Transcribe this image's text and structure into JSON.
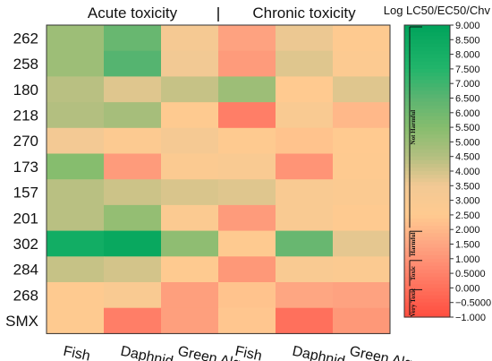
{
  "chart_data": {
    "type": "heatmap",
    "group_labels": [
      "Acute toxicity",
      "Chronic toxicity"
    ],
    "rows": [
      "262",
      "258",
      "180",
      "218",
      "270",
      "173",
      "157",
      "201",
      "302",
      "284",
      "268",
      "SMX"
    ],
    "columns": [
      "Fish",
      "Daphnid",
      "Green Algae",
      "Fish",
      "Daphnid",
      "Green Algae"
    ],
    "values": [
      [
        5.0,
        6.2,
        3.3,
        1.4,
        3.6,
        2.6
      ],
      [
        5.0,
        6.6,
        3.5,
        1.2,
        3.8,
        2.7
      ],
      [
        4.4,
        3.8,
        4.2,
        5.0,
        2.5,
        3.8
      ],
      [
        4.5,
        4.8,
        2.6,
        0.4,
        3.0,
        2.0
      ],
      [
        3.4,
        2.7,
        3.3,
        2.6,
        2.3,
        2.5
      ],
      [
        5.5,
        1.2,
        2.8,
        3.0,
        1.0,
        2.6
      ],
      [
        4.4,
        4.1,
        3.9,
        3.8,
        3.0,
        2.8
      ],
      [
        4.4,
        5.2,
        2.8,
        1.2,
        3.0,
        2.6
      ],
      [
        8.2,
        8.6,
        5.3,
        2.6,
        6.2,
        3.7
      ],
      [
        4.2,
        4.0,
        2.6,
        1.1,
        3.0,
        2.8
      ],
      [
        2.6,
        3.0,
        1.3,
        2.3,
        1.5,
        1.4
      ],
      [
        2.6,
        0.4,
        1.3,
        2.4,
        0.0,
        1.1
      ]
    ],
    "colorbar": {
      "title": "Log LC50/EC50/Chv",
      "min": -1.0,
      "max": 9.0,
      "ticks": [
        "9.000",
        "8.500",
        "8.000",
        "7.500",
        "7.000",
        "6.500",
        "6.000",
        "5.500",
        "5.000",
        "4.500",
        "4.000",
        "3.500",
        "3.000",
        "2.500",
        "2.000",
        "1.500",
        "1.000",
        "0.5000",
        "0.000",
        "−0.5000",
        "−1.000"
      ],
      "categories": [
        {
          "label": "Not Harmful",
          "from": 2.0,
          "to": 9.0
        },
        {
          "label": "Harmful",
          "from": 1.0,
          "to": 2.0
        },
        {
          "label": "Toxic",
          "from": 0.0,
          "to": 1.0
        },
        {
          "label": "Very Toxic",
          "from": -1.0,
          "to": 0.0
        }
      ],
      "colors": [
        {
          "v": -1.0,
          "c": "#ff4d3f"
        },
        {
          "v": 0.5,
          "c": "#ff826a"
        },
        {
          "v": 1.5,
          "c": "#fea682"
        },
        {
          "v": 2.5,
          "c": "#ffca90"
        },
        {
          "v": 3.5,
          "c": "#f2c994"
        },
        {
          "v": 4.5,
          "c": "#b3bf80"
        },
        {
          "v": 5.5,
          "c": "#86bd6e"
        },
        {
          "v": 6.5,
          "c": "#5bb471"
        },
        {
          "v": 7.5,
          "c": "#22b56b"
        },
        {
          "v": 9.0,
          "c": "#00a35b"
        }
      ]
    }
  }
}
